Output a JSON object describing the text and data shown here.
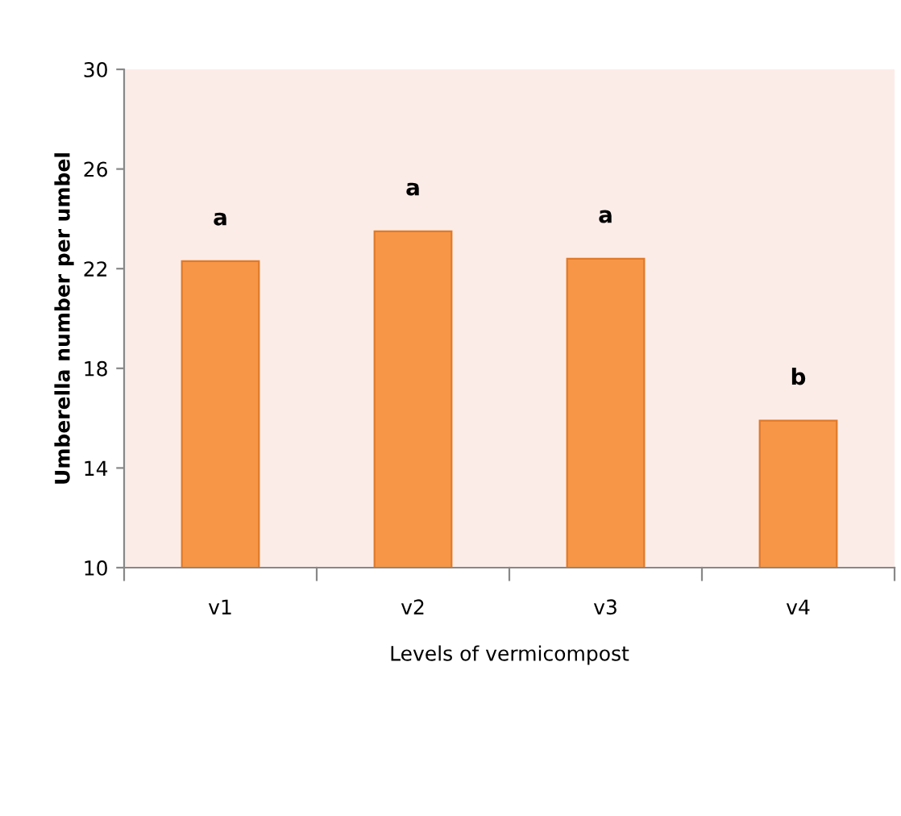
{
  "chart_data": {
    "type": "bar",
    "xlabel": "Levels of vermicompost",
    "ylabel": "Umberella number per umbel",
    "categories": [
      "v1",
      "v2",
      "v3",
      "v4"
    ],
    "values": [
      22.3,
      23.5,
      22.4,
      15.9
    ],
    "color": "#f79646",
    "ylim": [
      10,
      30
    ],
    "yticks": [
      10,
      14,
      18,
      22,
      26,
      30
    ],
    "grid": false,
    "legend": false,
    "annotations": [
      {
        "text": "a",
        "x": "v1",
        "y": 22.3
      },
      {
        "text": "a",
        "x": "v2",
        "y": 23.5
      },
      {
        "text": "a",
        "x": "v3",
        "y": 22.4
      },
      {
        "text": "b",
        "x": "v4",
        "y": 15.9
      }
    ]
  }
}
